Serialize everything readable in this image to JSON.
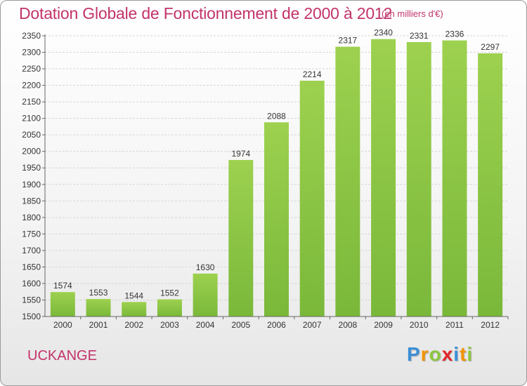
{
  "chart_data": {
    "type": "bar",
    "title": "Dotation Globale de Fonctionnement de 2000 à 2012",
    "subtitle": "(en milliers d'€)",
    "categories": [
      "2000",
      "2001",
      "2002",
      "2003",
      "2004",
      "2005",
      "2006",
      "2007",
      "2008",
      "2009",
      "2010",
      "2011",
      "2012"
    ],
    "values": [
      1574,
      1553,
      1544,
      1552,
      1630,
      1974,
      2088,
      2214,
      2317,
      2340,
      2331,
      2336,
      2297
    ],
    "ylim": [
      1500,
      2350
    ],
    "ytick_step": 50,
    "grid": true,
    "bar_color": "#7ab83a",
    "bar_color_light": "#9dd14f",
    "xlabel": "",
    "ylabel": ""
  },
  "footer": {
    "commune": "UCKANGE",
    "logo": [
      "P",
      "r",
      "o",
      "x",
      "i",
      "t",
      "i"
    ],
    "logo_colors": [
      "#3c8fd6",
      "#f29400",
      "#8cc63f",
      "#e3262b",
      "#3c8fd6",
      "#f29400",
      "#8cc63f"
    ]
  }
}
